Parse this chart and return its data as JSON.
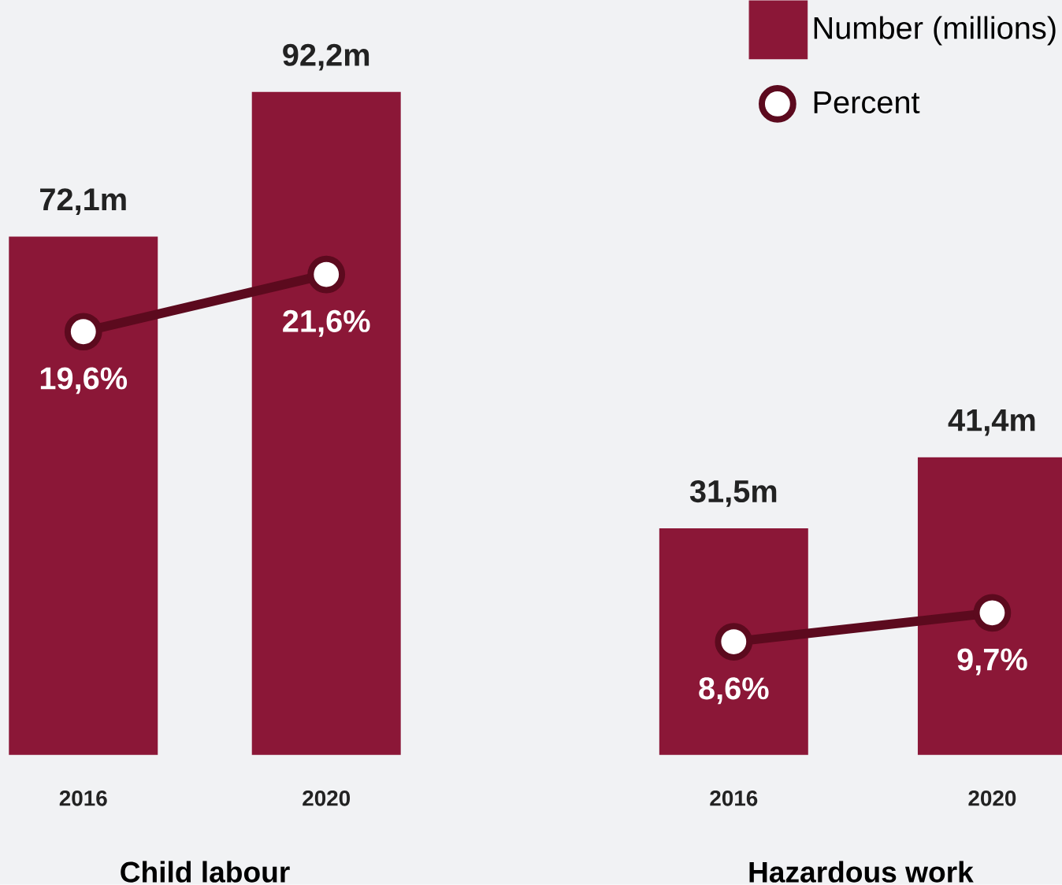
{
  "chart_data": [
    {
      "type": "bar",
      "categories": [
        "2016",
        "2020"
      ],
      "xlabel": "Child labour",
      "ylim": [
        0,
        105
      ],
      "y2lim": [
        4.8,
        31.2
      ],
      "tick_labels": "x",
      "series": [
        {
          "color": "#8b1737",
          "values": [
            72.1,
            92.2
          ],
          "value_labels": [
            "72,1m",
            "92,2m"
          ]
        },
        {
          "type": "line",
          "axis": "y2",
          "color": "#5c0a1e",
          "marker": "circle",
          "values": [
            19.6,
            21.6
          ],
          "value_labels": [
            "19,6%",
            "21,6%"
          ]
        }
      ]
    },
    {
      "type": "bar",
      "categories": [
        "2016",
        "2020"
      ],
      "xlabel": "Hazardous work",
      "ylim": [
        0,
        105
      ],
      "y2lim": [
        4.3,
        33
      ],
      "tick_labels": "x",
      "legend": "top right",
      "series": [
        {
          "name": "Number (millions)",
          "color": "#8b1737",
          "values": [
            31.5,
            41.4
          ],
          "value_labels": [
            "31,5m",
            "41,4m"
          ]
        },
        {
          "name": "Percent",
          "type": "line",
          "axis": "y2",
          "color": "#5c0a1e",
          "marker": "circle",
          "values": [
            8.6,
            9.7
          ],
          "value_labels": [
            "8,6%",
            "9,7%"
          ]
        }
      ]
    }
  ]
}
